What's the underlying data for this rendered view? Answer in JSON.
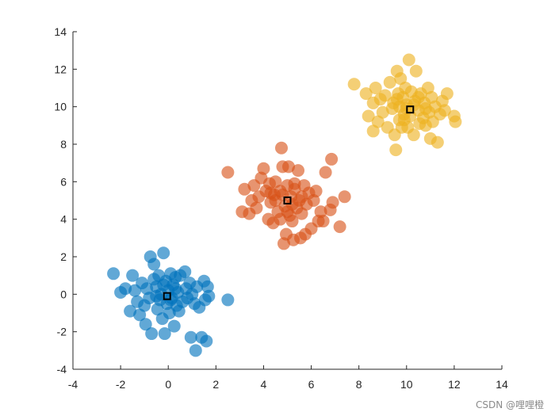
{
  "chart_data": {
    "type": "scatter",
    "xlim": [
      -4,
      14
    ],
    "ylim": [
      -4,
      14
    ],
    "x_ticks": [
      -4,
      -2,
      0,
      2,
      4,
      6,
      8,
      10,
      12,
      14
    ],
    "y_ticks": [
      -4,
      -2,
      0,
      2,
      4,
      6,
      8,
      10,
      12,
      14
    ],
    "grid": false,
    "series": [
      {
        "color": "#0072BD",
        "points": [
          [
            -2.3,
            1.1
          ],
          [
            -2.0,
            0.1
          ],
          [
            -1.8,
            0.3
          ],
          [
            -1.6,
            -0.9
          ],
          [
            -1.5,
            1.0
          ],
          [
            -1.4,
            0.2
          ],
          [
            -1.3,
            -0.4
          ],
          [
            -1.2,
            -1.1
          ],
          [
            -1.1,
            0.6
          ],
          [
            -1.0,
            -0.6
          ],
          [
            -0.95,
            -1.6
          ],
          [
            -0.9,
            0.3
          ],
          [
            -0.8,
            -0.2
          ],
          [
            -0.75,
            2.0
          ],
          [
            -0.7,
            -2.1
          ],
          [
            -0.6,
            1.6
          ],
          [
            -0.5,
            0.4
          ],
          [
            -0.45,
            -0.8
          ],
          [
            -0.4,
            1.0
          ],
          [
            -0.35,
            -0.3
          ],
          [
            -0.3,
            0.0
          ],
          [
            -0.25,
            -1.3
          ],
          [
            -0.2,
            2.2
          ],
          [
            -0.15,
            -2.1
          ],
          [
            -0.1,
            0.7
          ],
          [
            -0.05,
            -0.5
          ],
          [
            0.0,
            0.2
          ],
          [
            0.05,
            -1.0
          ],
          [
            0.1,
            1.1
          ],
          [
            0.15,
            -0.2
          ],
          [
            0.2,
            0.5
          ],
          [
            0.25,
            -1.7
          ],
          [
            0.3,
            0.9
          ],
          [
            0.35,
            -0.6
          ],
          [
            0.4,
            0.1
          ],
          [
            0.45,
            -0.9
          ],
          [
            0.5,
            1.0
          ],
          [
            0.6,
            -0.4
          ],
          [
            0.7,
            1.2
          ],
          [
            0.75,
            0.3
          ],
          [
            0.8,
            -0.2
          ],
          [
            0.9,
            0.6
          ],
          [
            0.95,
            -2.3
          ],
          [
            1.0,
            0.0
          ],
          [
            1.1,
            -0.5
          ],
          [
            1.2,
            0.4
          ],
          [
            1.15,
            -3.0
          ],
          [
            1.3,
            -0.7
          ],
          [
            1.4,
            -2.3
          ],
          [
            1.5,
            0.7
          ],
          [
            1.55,
            -0.3
          ],
          [
            1.6,
            -2.5
          ],
          [
            1.65,
            0.4
          ],
          [
            1.7,
            -0.1
          ],
          [
            2.5,
            -0.3
          ],
          [
            -0.5,
            -0.1
          ],
          [
            0.1,
            -0.3
          ],
          [
            -0.2,
            0.5
          ],
          [
            0.3,
            0.3
          ],
          [
            -0.6,
            0.8
          ]
        ]
      },
      {
        "color": "#D95319",
        "points": [
          [
            2.5,
            6.5
          ],
          [
            3.1,
            4.4
          ],
          [
            3.2,
            5.6
          ],
          [
            3.4,
            4.3
          ],
          [
            3.5,
            5.0
          ],
          [
            3.6,
            5.8
          ],
          [
            3.7,
            4.6
          ],
          [
            3.8,
            5.2
          ],
          [
            3.9,
            6.2
          ],
          [
            4.0,
            6.7
          ],
          [
            4.1,
            5.5
          ],
          [
            4.2,
            4.0
          ],
          [
            4.25,
            5.9
          ],
          [
            4.3,
            4.9
          ],
          [
            4.4,
            3.8
          ],
          [
            4.45,
            5.3
          ],
          [
            4.5,
            6.0
          ],
          [
            4.6,
            4.4
          ],
          [
            4.7,
            5.5
          ],
          [
            4.75,
            7.8
          ],
          [
            4.8,
            6.8
          ],
          [
            4.85,
            2.7
          ],
          [
            4.9,
            4.7
          ],
          [
            4.95,
            3.2
          ],
          [
            5.0,
            5.8
          ],
          [
            5.05,
            6.8
          ],
          [
            5.1,
            4.2
          ],
          [
            5.15,
            5.2
          ],
          [
            5.2,
            3.9
          ],
          [
            5.25,
            2.9
          ],
          [
            5.3,
            5.6
          ],
          [
            5.4,
            4.6
          ],
          [
            5.45,
            6.6
          ],
          [
            5.5,
            5.0
          ],
          [
            5.55,
            3.0
          ],
          [
            5.6,
            4.3
          ],
          [
            5.7,
            5.8
          ],
          [
            5.75,
            3.2
          ],
          [
            5.8,
            4.8
          ],
          [
            5.9,
            5.4
          ],
          [
            6.0,
            3.5
          ],
          [
            6.1,
            5.0
          ],
          [
            6.2,
            5.5
          ],
          [
            6.3,
            3.9
          ],
          [
            6.4,
            4.4
          ],
          [
            6.5,
            3.9
          ],
          [
            6.6,
            6.5
          ],
          [
            6.8,
            4.5
          ],
          [
            6.85,
            7.2
          ],
          [
            6.9,
            4.9
          ],
          [
            7.2,
            3.6
          ],
          [
            7.4,
            5.2
          ],
          [
            4.5,
            5.0
          ],
          [
            5.2,
            4.8
          ],
          [
            4.8,
            5.3
          ],
          [
            5.6,
            5.2
          ],
          [
            4.3,
            5.4
          ],
          [
            5.0,
            4.4
          ],
          [
            5.3,
            5.9
          ],
          [
            4.7,
            4.0
          ]
        ]
      },
      {
        "color": "#EDB120",
        "points": [
          [
            7.8,
            11.2
          ],
          [
            8.3,
            10.7
          ],
          [
            8.4,
            9.5
          ],
          [
            8.6,
            10.2
          ],
          [
            8.6,
            8.7
          ],
          [
            8.7,
            11.0
          ],
          [
            8.8,
            9.2
          ],
          [
            8.9,
            10.4
          ],
          [
            9.0,
            9.7
          ],
          [
            9.1,
            10.6
          ],
          [
            9.2,
            8.9
          ],
          [
            9.3,
            11.3
          ],
          [
            9.4,
            9.9
          ],
          [
            9.45,
            10.2
          ],
          [
            9.5,
            8.5
          ],
          [
            9.55,
            7.7
          ],
          [
            9.6,
            11.9
          ],
          [
            9.65,
            10.7
          ],
          [
            9.7,
            9.3
          ],
          [
            9.75,
            11.5
          ],
          [
            9.8,
            8.9
          ],
          [
            9.85,
            10.5
          ],
          [
            9.9,
            9.6
          ],
          [
            9.95,
            11.0
          ],
          [
            10.0,
            10.1
          ],
          [
            10.05,
            8.9
          ],
          [
            10.1,
            12.5
          ],
          [
            10.15,
            9.5
          ],
          [
            10.2,
            10.8
          ],
          [
            10.3,
            8.5
          ],
          [
            10.35,
            10.3
          ],
          [
            10.4,
            11.9
          ],
          [
            10.5,
            9.8
          ],
          [
            10.55,
            9.1
          ],
          [
            10.6,
            10.7
          ],
          [
            10.7,
            9.4
          ],
          [
            10.75,
            10.2
          ],
          [
            10.8,
            9.0
          ],
          [
            10.9,
            11.0
          ],
          [
            10.95,
            9.7
          ],
          [
            11.0,
            8.3
          ],
          [
            11.05,
            10.5
          ],
          [
            11.1,
            9.2
          ],
          [
            11.2,
            10.0
          ],
          [
            11.3,
            8.1
          ],
          [
            11.4,
            9.6
          ],
          [
            11.5,
            10.3
          ],
          [
            11.6,
            9.8
          ],
          [
            11.7,
            10.7
          ],
          [
            12.0,
            9.5
          ],
          [
            12.05,
            9.2
          ],
          [
            10.0,
            9.9
          ],
          [
            10.3,
            10.1
          ],
          [
            9.7,
            10.0
          ],
          [
            10.5,
            10.5
          ],
          [
            9.9,
            9.3
          ],
          [
            10.8,
            9.9
          ],
          [
            9.6,
            10.4
          ]
        ]
      }
    ],
    "centroids": [
      [
        -0.05,
        -0.1
      ],
      [
        5.0,
        5.0
      ],
      [
        10.15,
        9.85
      ]
    ]
  },
  "watermark": "CSDN @哩哩橙"
}
